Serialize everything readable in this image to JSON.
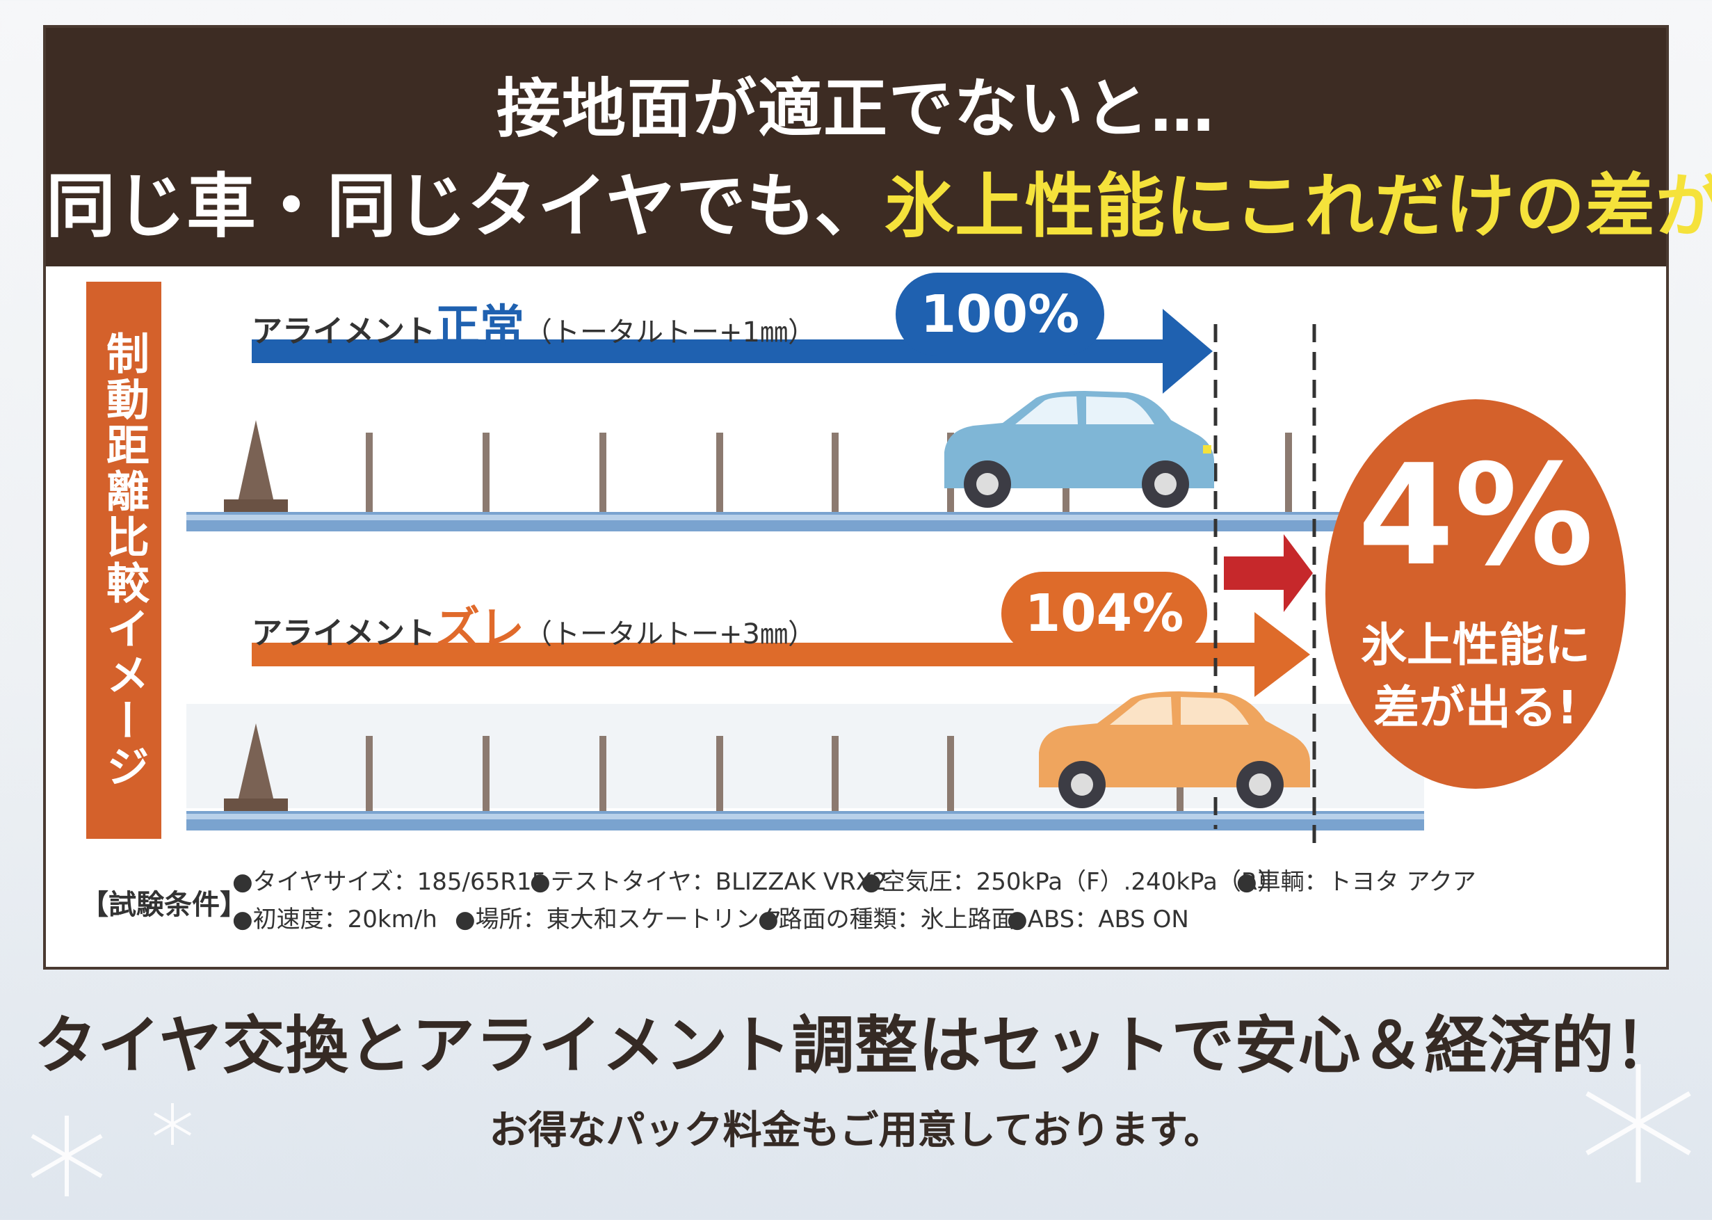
{
  "header": {
    "line1": "接地面が適正でないと…",
    "line2_part1": "同じ車・同じタイヤでも、",
    "line2_highlight": "氷上性能にこれだけの差が！"
  },
  "side_label": "制動距離比較イメージ",
  "normal": {
    "label_prefix": "アライメント",
    "label_emphasis": "正常",
    "label_detail": "（トータルトー+1㎜）",
    "percent": "100%",
    "stop_fraction": 1.0
  },
  "shifted": {
    "label_prefix": "アライメント",
    "label_emphasis": "ズレ",
    "label_detail": "（トータルトー+3㎜）",
    "percent": "104%",
    "stop_fraction": 1.04
  },
  "badge": {
    "percent": "4%",
    "line1": "氷上性能に",
    "line2": "差が出る!"
  },
  "conditions": {
    "title": "【試験条件】",
    "items": [
      "●タイヤサイズ：185/65R15",
      "●テストタイヤ：BLIZZAK VRX2",
      "●空気圧：250kPa（F）.240kPa（R）",
      "●車輌：トヨタ アクア",
      "●初速度：20km/h",
      "●場所：東大和スケートリンク",
      "●路面の種類：氷上路面",
      "●ABS：ABS ON"
    ]
  },
  "tagline": "タイヤ交換とアライメント調整はセットで安心＆経済的！",
  "subline": "お得なパック料金もご用意しております。",
  "colors": {
    "header_bg": "#3d2c23",
    "highlight": "#f5e23b",
    "blue": "#1f61b0",
    "orange": "#de6b2a",
    "red_arrow": "#c6282b",
    "car_blue": "#7fb6d6",
    "car_orange": "#efa55e"
  }
}
